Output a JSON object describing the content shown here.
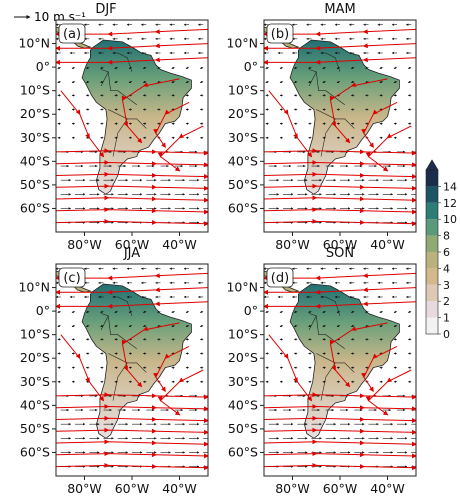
{
  "reference_vector": {
    "label": "10 m s⁻¹"
  },
  "panels": [
    {
      "letter": "(a)",
      "season": "DJF",
      "show_season": false
    },
    {
      "letter": "(b)",
      "season": "MAM",
      "show_season": true
    },
    {
      "letter": "(c)",
      "season": "JJA",
      "show_season": true
    },
    {
      "letter": "(d)",
      "season": "SON",
      "show_season": true
    }
  ],
  "lat_labels": [
    "10°N",
    "0°",
    "10°S",
    "20°S",
    "30°S",
    "40°S",
    "50°S",
    "60°S"
  ],
  "lat_values": [
    10,
    0,
    -10,
    -20,
    -30,
    -40,
    -50,
    -60
  ],
  "lon_labels": [
    "80°W",
    "60°W",
    "40°W"
  ],
  "lon_values": [
    -80,
    -60,
    -40
  ],
  "colorbar": {
    "ticks": [
      "0",
      "1",
      "2",
      "3",
      "4",
      "6",
      "8",
      "10",
      "12",
      "14"
    ],
    "colors": [
      "#f4f1f2",
      "#e6dadc",
      "#dec9b7",
      "#d2b88d",
      "#b9b27c",
      "#8eaa76",
      "#5a9a7a",
      "#2c7d77",
      "#1c5466",
      "#1b2f4d"
    ]
  },
  "colors": {
    "streamline": "#e00000",
    "vector": "#111111",
    "land_fill": "#d8c9a4",
    "ocean": "#ffffff"
  }
}
